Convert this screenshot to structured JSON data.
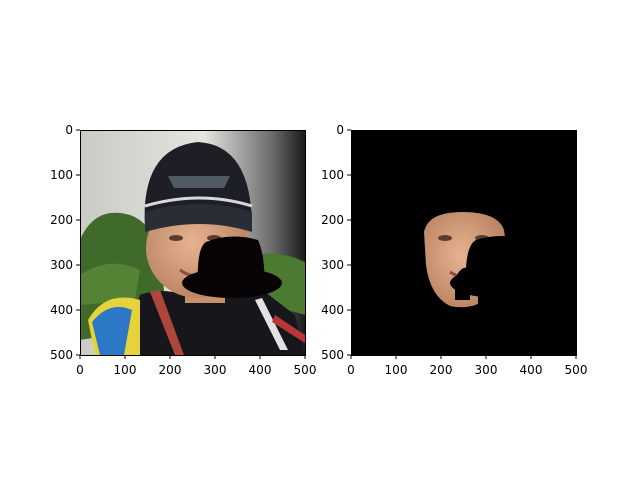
{
  "chart_data": [
    {
      "type": "image",
      "title": "",
      "content": "original photo with occluding black hat shape",
      "xlim": [
        0,
        500
      ],
      "ylim": [
        500,
        0
      ],
      "xticks": [
        0,
        100,
        200,
        300,
        400,
        500
      ],
      "yticks": [
        0,
        100,
        200,
        300,
        400,
        500
      ],
      "xtick_labels": [
        "0",
        "100",
        "200",
        "300",
        "400",
        "500"
      ],
      "ytick_labels": [
        "0",
        "100",
        "200",
        "300",
        "400",
        "500"
      ],
      "colors": {
        "background_bright": "#d8d8d0",
        "background_dark": "#1a1a1a",
        "foliage": "#3f6a2a",
        "beanie": "#1e1f26",
        "skin": "#d9a27e",
        "jacket": "#16161c",
        "flag_blue": "#2c78c7",
        "flag_yellow": "#e6d23a",
        "occluder": "#080405"
      }
    },
    {
      "type": "image",
      "title": "",
      "content": "face segmentation mask applied to photo",
      "xlim": [
        0,
        500
      ],
      "ylim": [
        500,
        0
      ],
      "xticks": [
        0,
        100,
        200,
        300,
        400,
        500
      ],
      "yticks": [
        0,
        100,
        200,
        300,
        400,
        500
      ],
      "xtick_labels": [
        "0",
        "100",
        "200",
        "300",
        "400",
        "500"
      ],
      "ytick_labels": [
        "0",
        "100",
        "200",
        "300",
        "400",
        "500"
      ],
      "colors": {
        "background": "#000000",
        "skin": "#d4a07a"
      }
    }
  ]
}
